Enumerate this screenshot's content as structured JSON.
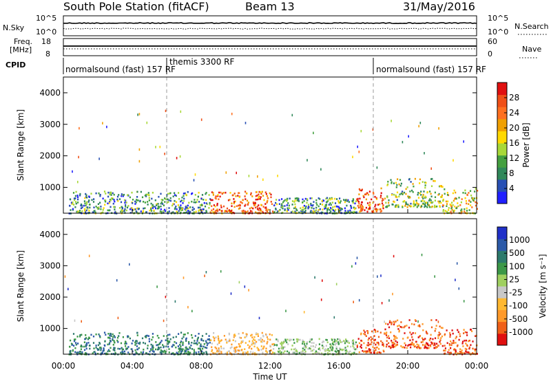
{
  "header": {
    "title": "South Pole Station (fitACF)",
    "beam": "Beam 13",
    "date": "31/May/2016"
  },
  "strip": {
    "nsky_label": "N.Sky",
    "nsearch_label": "N.Search",
    "freq_label_1": "Freq.",
    "freq_label_2": "[MHz]",
    "nave_label": "Nave",
    "cpid_label": "CPID",
    "nsky_ticks": [
      "10^5",
      "10^0"
    ],
    "nsearch_ticks": [
      "10^5",
      "10^0"
    ],
    "freq_ticks": [
      "18",
      "8"
    ],
    "nave_ticks": [
      "60",
      "0"
    ]
  },
  "cpid_segments": [
    {
      "label": "normalsound (fast) 157 RF",
      "start_h": 0
    },
    {
      "label": "themis 3300 RF",
      "start_h": 6
    },
    {
      "label": "normalsound (fast) 157 RF",
      "start_h": 18
    }
  ],
  "panels": {
    "power": {
      "ylabel": "Slant Range [km]",
      "yticks": [
        "4000",
        "3000",
        "2000",
        "1000"
      ],
      "cbar_label": "Power [dB]",
      "cbar_ticks": [
        "28",
        "24",
        "20",
        "16",
        "12",
        "8",
        "4"
      ],
      "cbar_colors": [
        "#2020ff",
        "#2850b4",
        "#30885a",
        "#44a040",
        "#a8d838",
        "#ffd900",
        "#f0a000",
        "#ff7020",
        "#f05018",
        "#e01010"
      ]
    },
    "velocity": {
      "ylabel": "Slant Range [km]",
      "yticks": [
        "4000",
        "3000",
        "2000",
        "1000"
      ],
      "cbar_label": "Velocity [m s⁻¹]",
      "cbar_ticks": [
        "1000",
        "500",
        "100",
        "25",
        "-25",
        "-100",
        "-500",
        "-1000"
      ],
      "cbar_colors": [
        "#e01010",
        "#f06018",
        "#ff9a2a",
        "#ffb830",
        "#c8c8c8",
        "#a0d060",
        "#3c9848",
        "#2c7a6c",
        "#2c5aa8",
        "#2030c8"
      ]
    }
  },
  "xaxis": {
    "label": "Time UT",
    "ticks": [
      "00:00",
      "04:00",
      "08:00",
      "12:00",
      "16:00",
      "20:00",
      "00:00"
    ]
  },
  "chart_data": {
    "type": "heatmap",
    "x_range_hours": [
      0,
      24
    ],
    "y_range_km": [
      180,
      4500
    ],
    "dashed_markers_h": [
      6,
      18
    ],
    "nsky_level": "≈10^4 (near top of 10^0–10^5 log scale)",
    "freq_level_mhz": 11,
    "scatter_regions": [
      {
        "t_start": 0.3,
        "t_end": 8.5,
        "range_low": 200,
        "range_high": 900,
        "power_db": 8,
        "velocity": 100
      },
      {
        "t_start": 8.5,
        "t_end": 12.2,
        "range_low": 200,
        "range_high": 900,
        "power_db": 24,
        "velocity": -100
      },
      {
        "t_start": 12.2,
        "t_end": 17.0,
        "range_low": 200,
        "range_high": 700,
        "power_db": 8,
        "velocity": 25
      },
      {
        "t_start": 17.0,
        "t_end": 18.6,
        "range_low": 250,
        "range_high": 1000,
        "power_db": 24,
        "velocity": -500
      },
      {
        "t_start": 18.6,
        "t_end": 22.0,
        "range_low": 400,
        "range_high": 1300,
        "power_db": 12,
        "velocity": -300
      },
      {
        "t_start": 22.0,
        "t_end": 24.0,
        "range_low": 200,
        "range_high": 1000,
        "power_db": 16,
        "velocity": -200
      }
    ]
  }
}
